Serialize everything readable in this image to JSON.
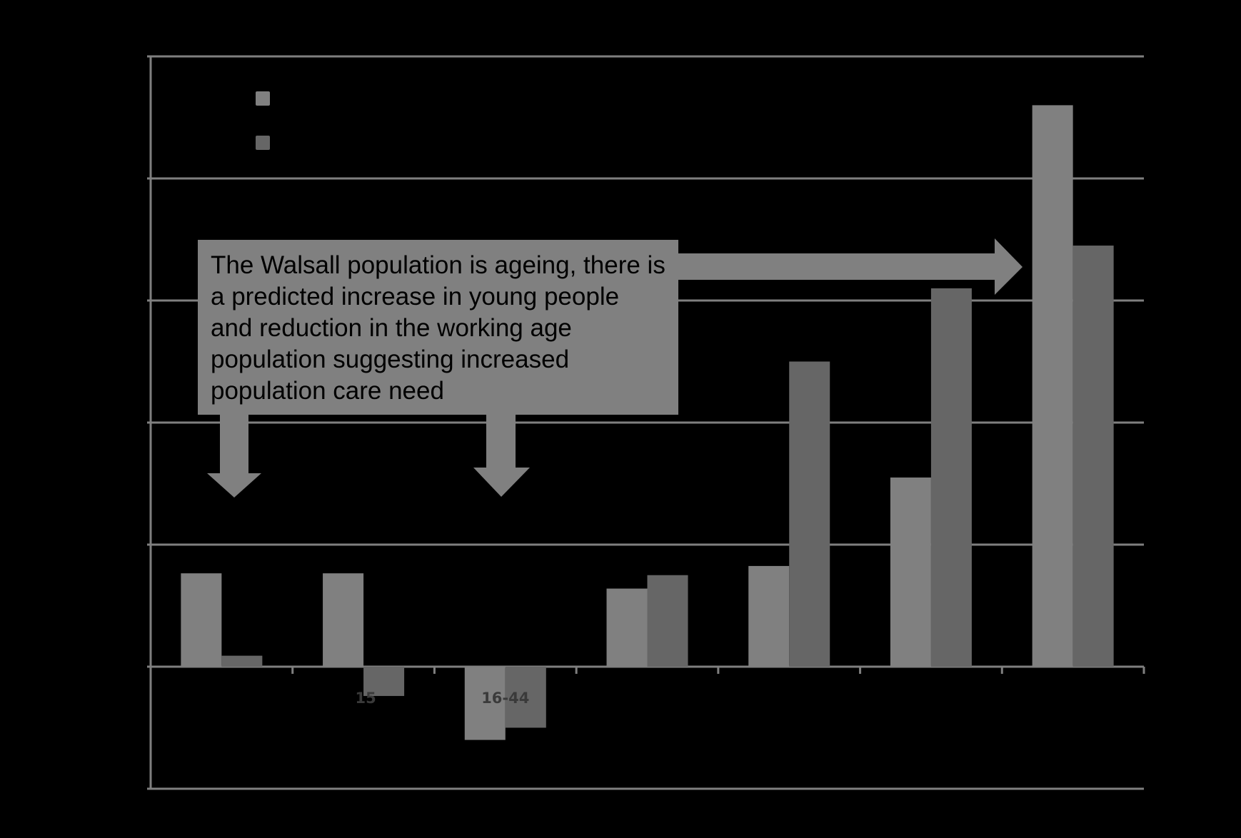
{
  "colors": {
    "background": "#000000",
    "series_1": "#808080",
    "series_2": "#666666",
    "gridline": "#7f7f7f",
    "axis": "#7f7f7f",
    "callout_fill": "#808080",
    "callout_text": "#000000",
    "arrow_fill": "#808080"
  },
  "annotation": {
    "text": "The Walsall population is ageing, there is a predicted increase in young people and reduction in the working age population suggesting increased population care need",
    "arrows": [
      "down-arrow",
      "down-arrow",
      "right-arrow"
    ]
  },
  "chart_data": {
    "type": "bar",
    "title": "",
    "xlabel": "",
    "ylabel": "",
    "categories": [
      "",
      "15",
      "16-44",
      "",
      "",
      "",
      ""
    ],
    "series": [
      {
        "values": [
          15.3,
          15.3,
          -12.0,
          12.8,
          16.5,
          31.0,
          92.0
        ]
      },
      {
        "values": [
          1.8,
          -4.8,
          -10.0,
          15.0,
          50.0,
          62.0,
          69.0
        ]
      }
    ],
    "ylim": [
      -20,
      100
    ],
    "grid": true,
    "legend": {
      "position": "top-left",
      "entries": [
        "",
        ""
      ]
    }
  }
}
